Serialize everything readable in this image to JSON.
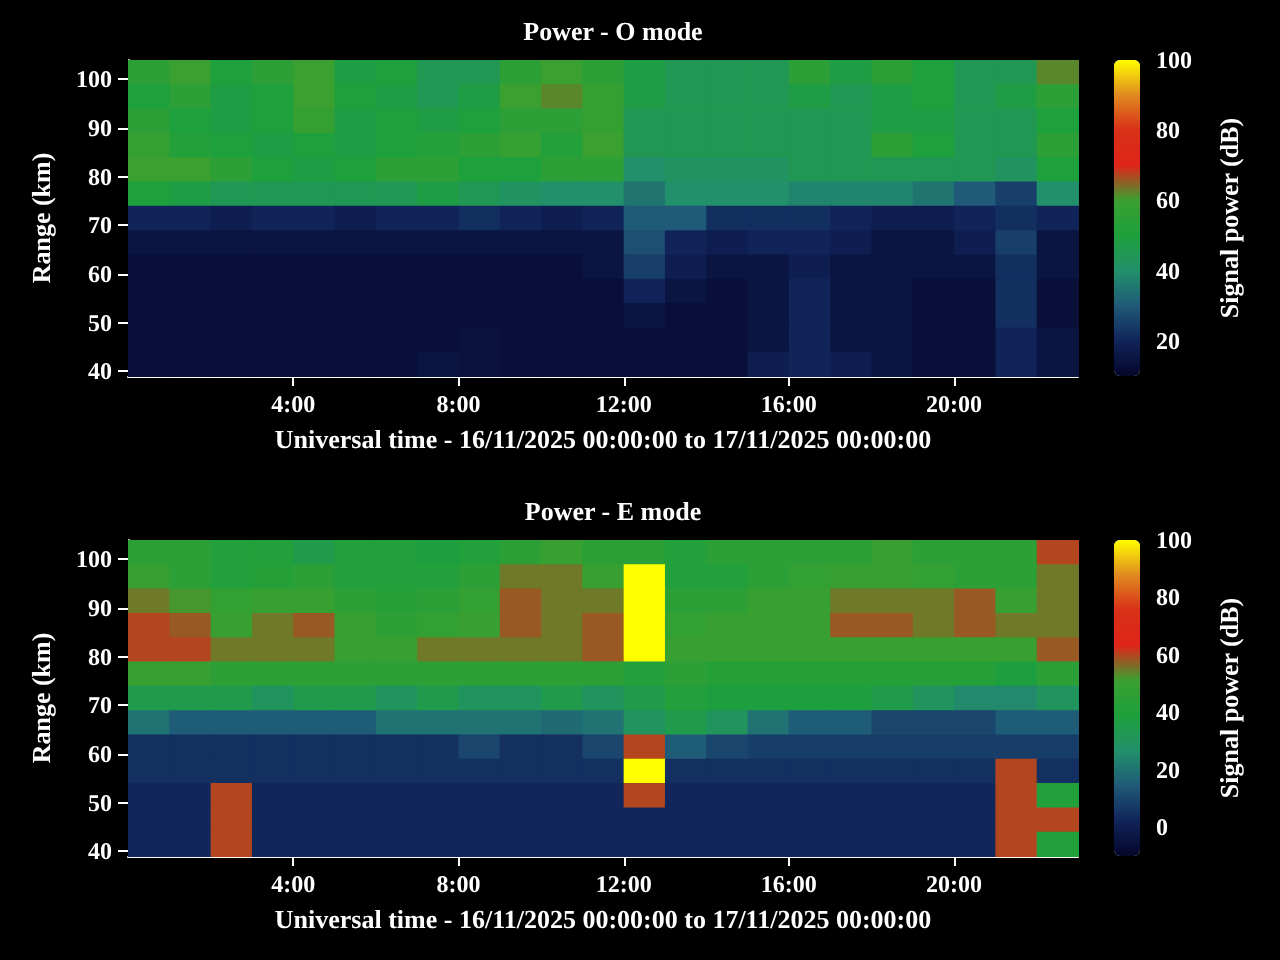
{
  "chart_data": [
    {
      "type": "heatmap",
      "title": "Power - O mode",
      "xlabel": "Universal time - 16/11/2025 00:00:00 to 17/11/2025 00:00:00",
      "ylabel": "Range (km)",
      "clabel": "Signal power (dB)",
      "x": [
        0.5,
        1.5,
        2.5,
        3.5,
        4.5,
        5.5,
        6.5,
        7.5,
        8.5,
        9.5,
        10.5,
        11.5,
        12.5,
        13.5,
        14.5,
        15.5,
        16.5,
        17.5,
        18.5,
        19.5,
        20.5,
        21.5,
        22.5
      ],
      "y": [
        101.5,
        96.5,
        91.5,
        86.5,
        81.5,
        76.5,
        71.5,
        66.5,
        61.5,
        56.5,
        51.5,
        46.5,
        41.5
      ],
      "xlim": [
        0,
        23
      ],
      "xticks": [
        {
          "value": 4,
          "label": "4:00"
        },
        {
          "value": 8,
          "label": "8:00"
        },
        {
          "value": 12,
          "label": "12:00"
        },
        {
          "value": 16,
          "label": "16:00"
        },
        {
          "value": 20,
          "label": "20:00"
        }
      ],
      "ylim": [
        39,
        104
      ],
      "yticks": [
        40,
        50,
        60,
        70,
        80,
        90,
        100
      ],
      "clim": [
        10,
        100
      ],
      "cticks": [
        20,
        40,
        60,
        80,
        100
      ],
      "cells": [
        [
          55,
          60,
          50,
          55,
          60,
          48,
          50,
          45,
          45,
          55,
          60,
          55,
          48,
          45,
          45,
          45,
          55,
          48,
          55,
          50,
          45,
          45,
          62
        ],
        [
          50,
          55,
          48,
          50,
          60,
          50,
          48,
          45,
          48,
          60,
          62,
          58,
          48,
          45,
          45,
          45,
          48,
          45,
          48,
          50,
          45,
          48,
          55
        ],
        [
          55,
          50,
          48,
          50,
          58,
          48,
          50,
          48,
          50,
          55,
          55,
          58,
          45,
          45,
          45,
          45,
          45,
          45,
          48,
          48,
          45,
          45,
          50
        ],
        [
          58,
          52,
          50,
          48,
          50,
          48,
          50,
          52,
          55,
          58,
          52,
          60,
          45,
          45,
          45,
          45,
          45,
          45,
          55,
          50,
          45,
          45,
          55
        ],
        [
          60,
          60,
          55,
          50,
          48,
          50,
          55,
          55,
          50,
          50,
          55,
          55,
          40,
          42,
          42,
          42,
          45,
          45,
          45,
          45,
          45,
          42,
          50
        ],
        [
          50,
          48,
          45,
          45,
          45,
          45,
          45,
          48,
          45,
          42,
          40,
          40,
          35,
          40,
          40,
          40,
          38,
          38,
          38,
          35,
          30,
          25,
          40
        ],
        [
          20,
          20,
          18,
          20,
          20,
          18,
          20,
          20,
          22,
          20,
          18,
          20,
          30,
          30,
          22,
          22,
          22,
          20,
          18,
          18,
          20,
          22,
          20
        ],
        [
          15,
          15,
          15,
          15,
          15,
          15,
          15,
          15,
          15,
          15,
          15,
          15,
          28,
          20,
          18,
          20,
          20,
          18,
          15,
          15,
          18,
          25,
          15
        ],
        [
          13,
          13,
          13,
          13,
          13,
          13,
          13,
          13,
          13,
          13,
          13,
          15,
          25,
          18,
          15,
          15,
          18,
          15,
          15,
          15,
          15,
          22,
          15
        ],
        [
          13,
          13,
          13,
          13,
          13,
          13,
          13,
          13,
          13,
          13,
          13,
          13,
          20,
          15,
          13,
          15,
          20,
          15,
          15,
          13,
          13,
          22,
          13
        ],
        [
          13,
          13,
          13,
          13,
          13,
          13,
          13,
          13,
          13,
          13,
          13,
          13,
          15,
          13,
          13,
          15,
          20,
          15,
          15,
          13,
          13,
          22,
          13
        ],
        [
          13,
          13,
          13,
          13,
          13,
          13,
          13,
          13,
          14,
          13,
          13,
          13,
          13,
          13,
          13,
          15,
          20,
          15,
          15,
          13,
          13,
          20,
          15
        ],
        [
          13,
          13,
          13,
          13,
          13,
          13,
          13,
          15,
          14,
          13,
          13,
          13,
          13,
          13,
          13,
          18,
          20,
          18,
          15,
          13,
          13,
          20,
          15
        ]
      ]
    },
    {
      "type": "heatmap",
      "title": "Power - E mode",
      "xlabel": "Universal time - 16/11/2025 00:00:00 to 17/11/2025 00:00:00",
      "ylabel": "Range (km)",
      "clabel": "Signal power (dB)",
      "x": [
        0.5,
        1.5,
        2.5,
        3.5,
        4.5,
        5.5,
        6.5,
        7.5,
        8.5,
        9.5,
        10.5,
        11.5,
        12.5,
        13.5,
        14.5,
        15.5,
        16.5,
        17.5,
        18.5,
        19.5,
        20.5,
        21.5,
        22.5
      ],
      "y": [
        101.5,
        96.5,
        91.5,
        86.5,
        81.5,
        76.5,
        71.5,
        66.5,
        61.5,
        56.5,
        51.5,
        46.5,
        41.5
      ],
      "xlim": [
        0,
        23
      ],
      "xticks": [
        {
          "value": 4,
          "label": "4:00"
        },
        {
          "value": 8,
          "label": "8:00"
        },
        {
          "value": 12,
          "label": "12:00"
        },
        {
          "value": 16,
          "label": "16:00"
        },
        {
          "value": 20,
          "label": "20:00"
        }
      ],
      "ylim": [
        39,
        104
      ],
      "yticks": [
        40,
        50,
        60,
        70,
        80,
        90,
        100
      ],
      "clim": [
        -10,
        100
      ],
      "cticks": [
        0,
        20,
        40,
        60,
        80,
        100
      ],
      "cells": [
        [
          45,
          45,
          40,
          40,
          35,
          40,
          40,
          38,
          40,
          45,
          50,
          45,
          45,
          40,
          45,
          45,
          45,
          45,
          50,
          45,
          45,
          45,
          60
        ],
        [
          50,
          45,
          40,
          42,
          45,
          40,
          40,
          40,
          45,
          55,
          55,
          50,
          100,
          40,
          40,
          45,
          48,
          50,
          50,
          48,
          45,
          45,
          55
        ],
        [
          55,
          52,
          48,
          50,
          50,
          45,
          42,
          45,
          48,
          58,
          55,
          55,
          100,
          45,
          45,
          50,
          50,
          55,
          55,
          55,
          58,
          50,
          55
        ],
        [
          60,
          58,
          50,
          55,
          58,
          50,
          45,
          48,
          50,
          58,
          55,
          58,
          100,
          48,
          50,
          50,
          50,
          58,
          58,
          55,
          58,
          55,
          55
        ],
        [
          60,
          60,
          55,
          55,
          55,
          50,
          50,
          55,
          55,
          55,
          55,
          58,
          100,
          50,
          50,
          50,
          50,
          50,
          50,
          50,
          50,
          50,
          58
        ],
        [
          50,
          50,
          45,
          45,
          45,
          45,
          45,
          45,
          45,
          45,
          45,
          45,
          40,
          45,
          42,
          42,
          42,
          42,
          42,
          42,
          42,
          38,
          45
        ],
        [
          35,
          35,
          35,
          30,
          35,
          35,
          30,
          35,
          30,
          30,
          35,
          30,
          35,
          40,
          38,
          38,
          38,
          38,
          35,
          30,
          25,
          25,
          30
        ],
        [
          20,
          15,
          15,
          15,
          15,
          15,
          20,
          20,
          20,
          20,
          18,
          20,
          30,
          35,
          30,
          20,
          15,
          15,
          10,
          10,
          10,
          15,
          15
        ],
        [
          5,
          5,
          5,
          5,
          5,
          5,
          5,
          5,
          10,
          5,
          5,
          10,
          60,
          15,
          10,
          8,
          8,
          8,
          8,
          8,
          8,
          8,
          8
        ],
        [
          5,
          5,
          5,
          5,
          5,
          5,
          5,
          5,
          5,
          5,
          5,
          5,
          100,
          5,
          5,
          5,
          5,
          5,
          5,
          5,
          5,
          60,
          5
        ],
        [
          3,
          3,
          60,
          3,
          3,
          3,
          3,
          3,
          3,
          3,
          3,
          3,
          60,
          3,
          3,
          3,
          3,
          3,
          3,
          3,
          3,
          60,
          40
        ],
        [
          3,
          3,
          60,
          3,
          3,
          3,
          3,
          3,
          3,
          3,
          3,
          3,
          3,
          3,
          3,
          3,
          3,
          3,
          3,
          3,
          3,
          60,
          60
        ],
        [
          3,
          3,
          60,
          3,
          3,
          3,
          3,
          3,
          3,
          3,
          3,
          3,
          3,
          3,
          3,
          3,
          3,
          3,
          3,
          3,
          3,
          60,
          40
        ]
      ]
    }
  ]
}
